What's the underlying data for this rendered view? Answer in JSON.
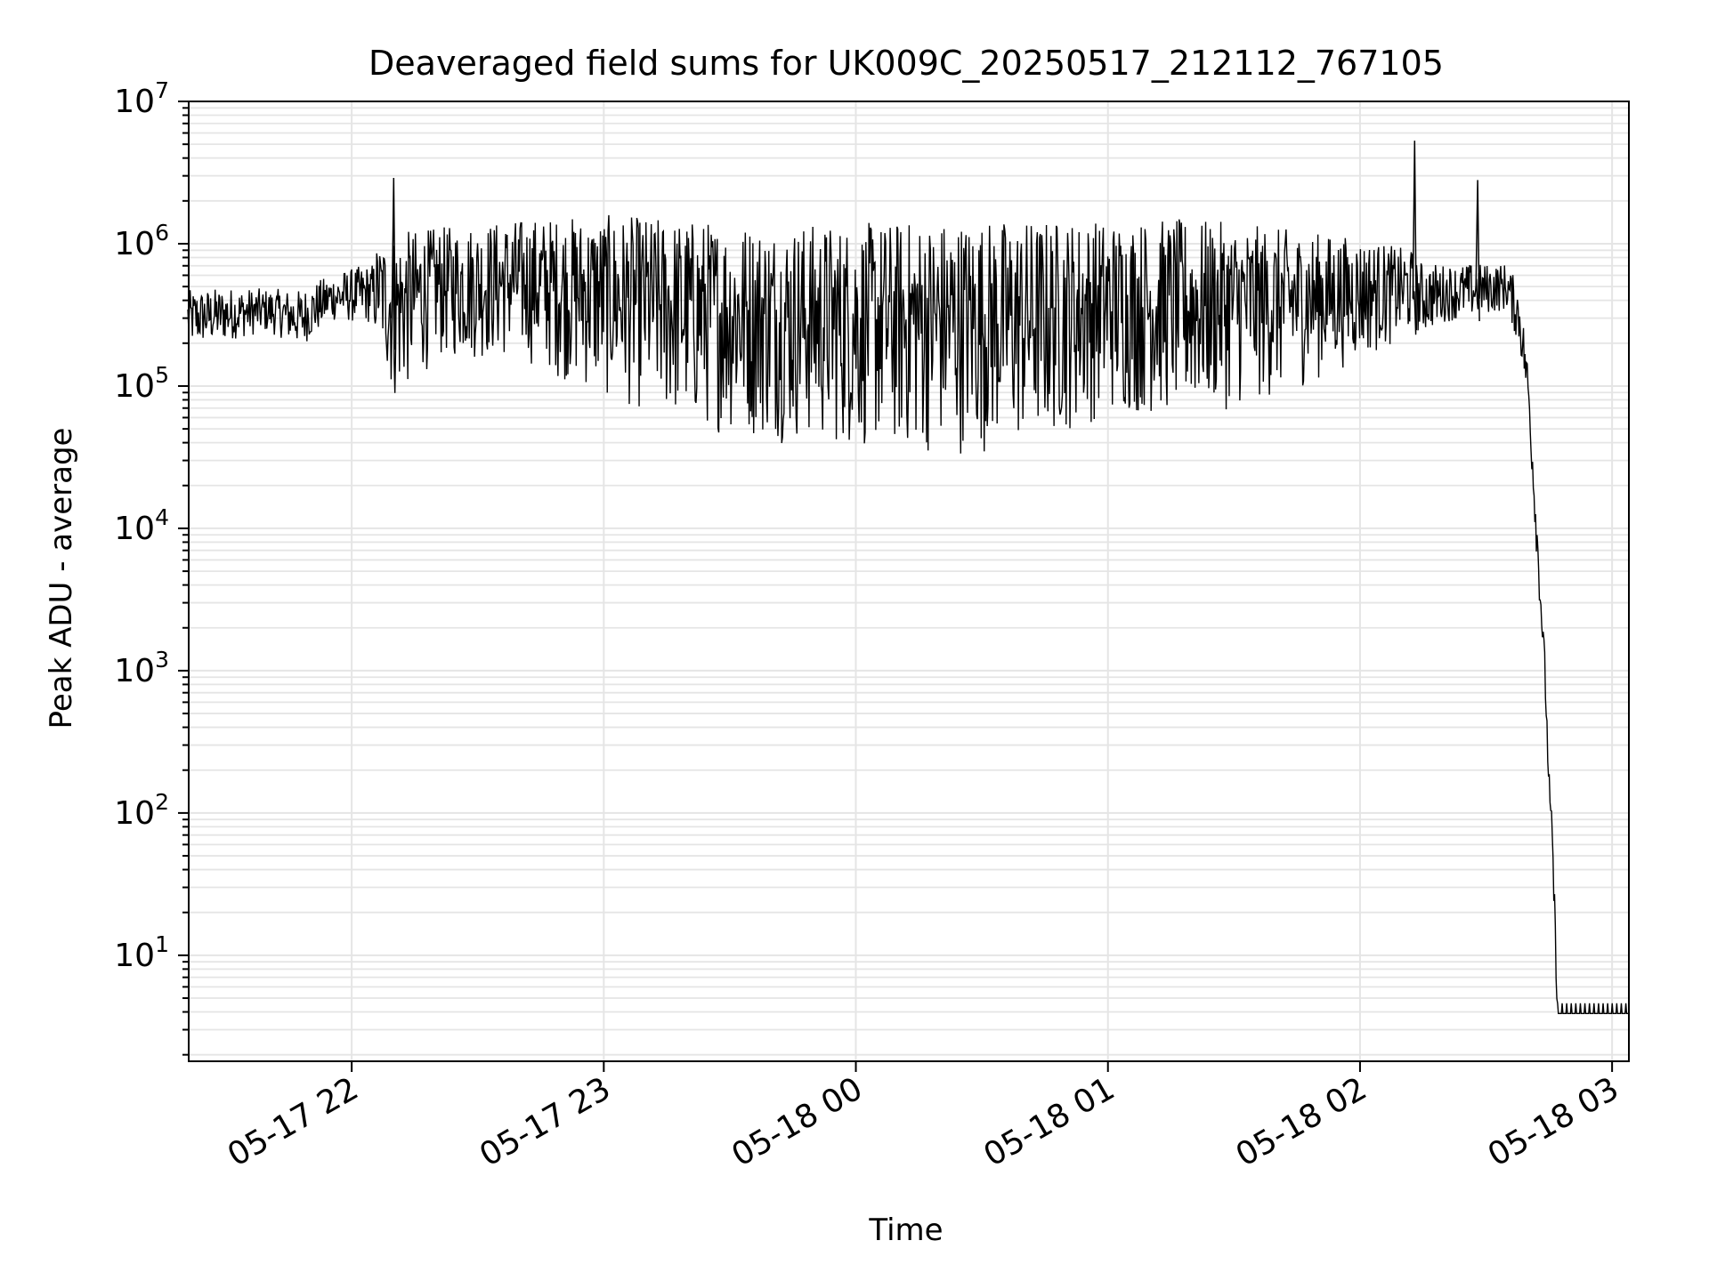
{
  "chart_data": {
    "type": "line",
    "title": "Deaveraged field sums for UK009C_20250517_212112_767105",
    "xlabel": "Time",
    "ylabel": "Peak ADU - average",
    "yscale": "log",
    "ylim": [
      1.8,
      10000000
    ],
    "xlim": [
      "2025-05-17 21:21:12",
      "2025-05-18 03:04:00"
    ],
    "grid": true,
    "legend": "none",
    "line_color": "#000000",
    "grid_color": "#e5e5e5",
    "x_ticks": [
      {
        "value": "2025-05-17 22:00",
        "label": "05-17 22"
      },
      {
        "value": "2025-05-17 23:00",
        "label": "05-17 23"
      },
      {
        "value": "2025-05-18 00:00",
        "label": "05-18 00"
      },
      {
        "value": "2025-05-18 01:00",
        "label": "05-18 01"
      },
      {
        "value": "2025-05-18 02:00",
        "label": "05-18 02"
      },
      {
        "value": "2025-05-18 03:00",
        "label": "05-18 03"
      }
    ],
    "y_ticks": [
      {
        "value": 10,
        "base": "10",
        "exp": "1"
      },
      {
        "value": 100,
        "base": "10",
        "exp": "2"
      },
      {
        "value": 1000,
        "base": "10",
        "exp": "3"
      },
      {
        "value": 10000,
        "base": "10",
        "exp": "4"
      },
      {
        "value": 100000,
        "base": "10",
        "exp": "5"
      },
      {
        "value": 1000000,
        "base": "10",
        "exp": "6"
      },
      {
        "value": 10000000,
        "base": "10",
        "exp": "7"
      }
    ],
    "series": [
      {
        "x": [
          "2025-05-17 21:21",
          "2025-05-17 21:30",
          "2025-05-17 21:40",
          "2025-05-17 21:48",
          "2025-05-17 21:55",
          "2025-05-17 22:05",
          "2025-05-17 22:10",
          "2025-05-17 22:20",
          "2025-05-17 22:40",
          "2025-05-17 23:00",
          "2025-05-17 23:20",
          "2025-05-17 23:40",
          "2025-05-18 00:00",
          "2025-05-18 00:20",
          "2025-05-18 00:40",
          "2025-05-18 01:00",
          "2025-05-18 01:20",
          "2025-05-18 01:40",
          "2025-05-18 02:00",
          "2025-05-18 02:20",
          "2025-05-18 02:35",
          "2025-05-18 02:38",
          "2025-05-18 02:40",
          "2025-05-18 02:42",
          "2025-05-18 02:44",
          "2025-05-18 02:45",
          "2025-05-18 02:46",
          "2025-05-18 02:47",
          "2025-05-18 02:48",
          "2025-05-18 03:04"
        ],
        "y": [
          300000,
          320000,
          340000,
          300000,
          420000,
          450000,
          300000,
          400000,
          500000,
          300000,
          200000,
          150000,
          120000,
          130000,
          150000,
          200000,
          250000,
          300000,
          350000,
          450000,
          500000,
          300000,
          100000,
          10000,
          1000,
          150,
          40,
          4,
          4,
          4
        ],
        "band_low": [
          220000,
          230000,
          250000,
          180000,
          300000,
          300000,
          70000,
          150000,
          150000,
          80000,
          50000,
          40000,
          35000,
          32000,
          35000,
          60000,
          60000,
          80000,
          150000,
          280000,
          300000,
          200000,
          90000,
          8000,
          800,
          100,
          20,
          4,
          4,
          4
        ],
        "band_high": [
          600000,
          600000,
          550000,
          500000,
          700000,
          900000,
          1200000,
          1300000,
          1500000,
          1600000,
          1500000,
          1400000,
          1400000,
          1500000,
          1500000,
          1500000,
          1500000,
          1300000,
          1100000,
          800000,
          700000,
          600000,
          200000,
          20000,
          1500,
          200,
          60,
          5,
          5,
          5
        ],
        "spikes": [
          {
            "x": "2025-05-17 22:10",
            "y": 2900000
          },
          {
            "x": "2025-05-18 02:13",
            "y": 5300000
          },
          {
            "x": "2025-05-18 02:28",
            "y": 2800000
          }
        ]
      }
    ]
  }
}
